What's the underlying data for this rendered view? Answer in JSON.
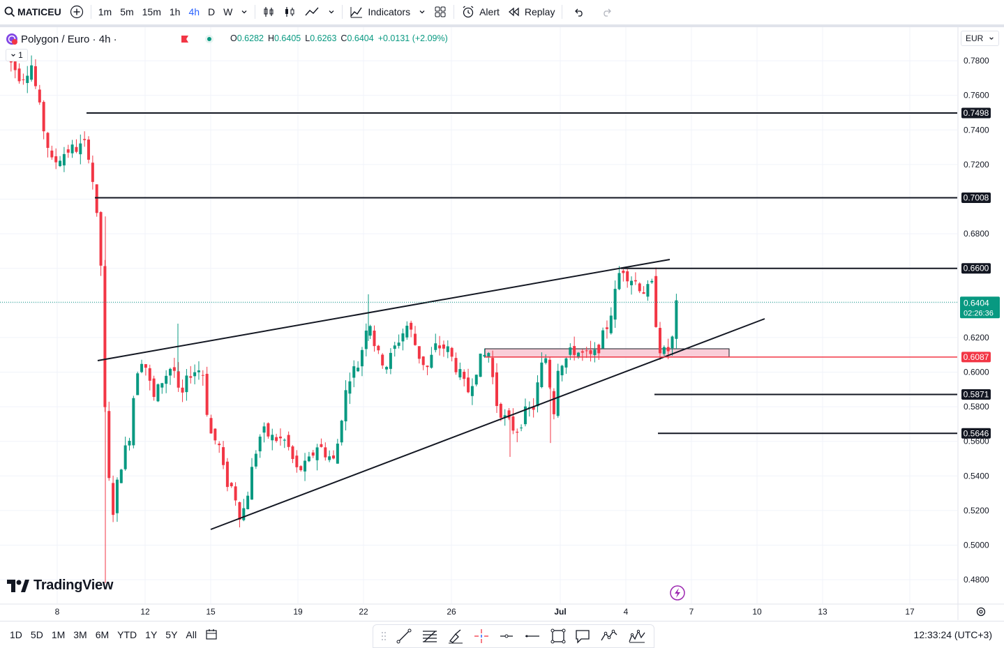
{
  "toolbar": {
    "symbol": "MATICEU",
    "intervals": [
      "1m",
      "5m",
      "15m",
      "1h",
      "4h",
      "D",
      "W"
    ],
    "active_interval": "4h",
    "indicators_label": "Indicators",
    "alert_label": "Alert",
    "replay_label": "Replay"
  },
  "legend": {
    "title": "Polygon / Euro · 4h ·",
    "o_label": "O",
    "o": "0.6282",
    "h_label": "H",
    "h": "0.6405",
    "l_label": "L",
    "l": "0.6263",
    "c_label": "C",
    "c": "0.6404",
    "change": "+0.0131 (+2.09%)",
    "collapse_count": "1"
  },
  "currency": "EUR",
  "colors": {
    "up": "#089981",
    "down": "#f23645",
    "accent": "#2962ff",
    "zone": "#f8c8d4"
  },
  "price_axis": {
    "ticks": [
      "0.7800",
      "0.7600",
      "0.7400",
      "0.7200",
      "0.6800",
      "0.6200",
      "0.6000",
      "0.5800",
      "0.5600",
      "0.5400",
      "0.5200",
      "0.5000",
      "0.4800"
    ],
    "labels": [
      {
        "text": "0.7498",
        "price": 0.7498
      },
      {
        "text": "0.7008",
        "price": 0.7008
      },
      {
        "text": "0.6600",
        "price": 0.66
      },
      {
        "text": "0.6087",
        "price": 0.6087
      },
      {
        "text": "0.5871",
        "price": 0.5871
      },
      {
        "text": "0.5646",
        "price": 0.5646
      }
    ],
    "current_price": "0.6404",
    "countdown": "02:26:36"
  },
  "time_axis": {
    "labels": [
      "8",
      "12",
      "15",
      "19",
      "22",
      "26",
      "Jul",
      "4",
      "7",
      "10",
      "13",
      "17"
    ]
  },
  "chart_data": {
    "type": "candlestick",
    "symbol": "Polygon / Euro",
    "interval": "4h",
    "ylim": [
      0.47,
      0.79
    ],
    "horizontal_levels": [
      0.7498,
      0.7008,
      0.66,
      0.6087,
      0.5871,
      0.5646
    ],
    "current_price": 0.6404,
    "support_zone": [
      0.6087,
      0.6135
    ]
  },
  "bottombar": {
    "ranges": [
      "1D",
      "5D",
      "1M",
      "3M",
      "6M",
      "YTD",
      "1Y",
      "5Y",
      "All"
    ],
    "clock": "12:33:24 (UTC+3)"
  },
  "brand": "TradingView"
}
